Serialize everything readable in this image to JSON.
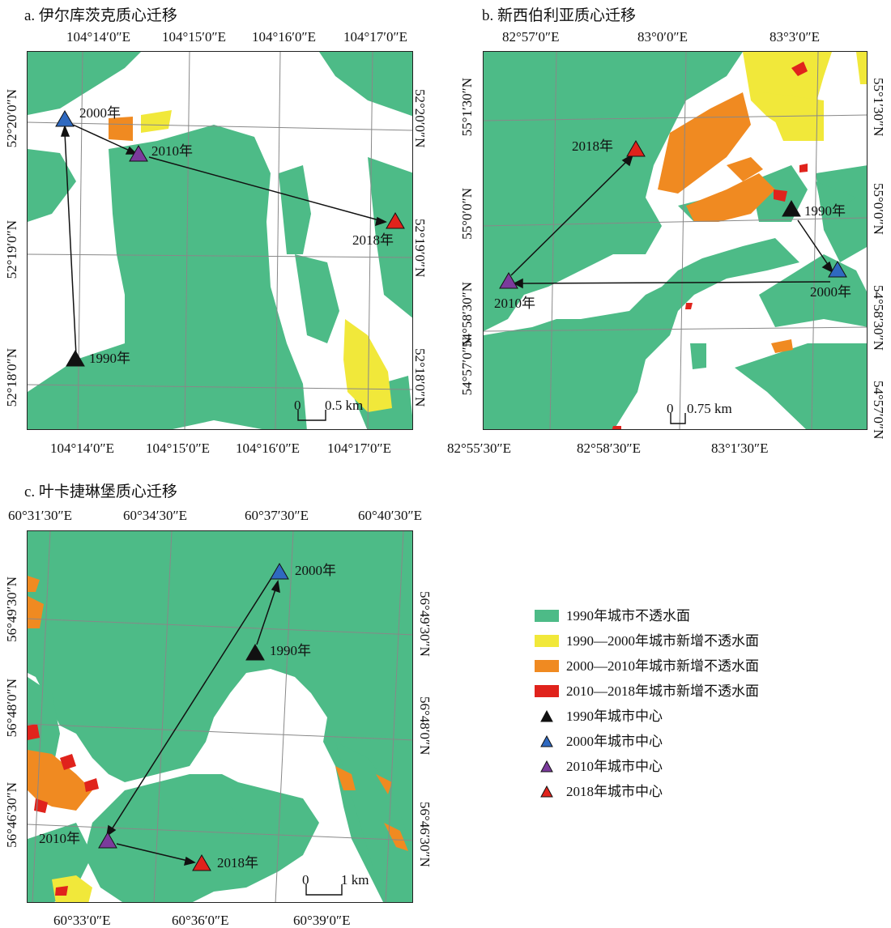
{
  "colors": {
    "impervious_1990": "#4dbb87",
    "new_1990_2000": "#f1e83a",
    "new_2000_2010": "#f08a21",
    "new_2010_2018": "#e0231c",
    "center_1990": "#111111",
    "center_2000": "#2f69c0",
    "center_2010": "#7b3b9c",
    "center_2018": "#e0231c",
    "grid": "#888888"
  },
  "panels": {
    "a": {
      "title": "a. 伊尔库茨克质心迁移",
      "top_ticks": [
        "104°14′0″E",
        "104°15′0″E",
        "104°16′0″E",
        "104°17′0″E"
      ],
      "bottom_ticks": [
        "104°14′0″E",
        "104°15′0″E",
        "104°16′0″E",
        "104°17′0″E"
      ],
      "left_ticks": [
        "52°20′0″N",
        "52°19′0″N",
        "52°18′0″N"
      ],
      "right_ticks": [
        "52°20′0″N",
        "52°19′0″N",
        "52°18′0″N"
      ],
      "scale": {
        "zero": "0",
        "label": "0.5 km"
      },
      "centers": [
        {
          "year": "1990年",
          "symbol": "black"
        },
        {
          "year": "2000年",
          "symbol": "blue"
        },
        {
          "year": "2010年",
          "symbol": "purple"
        },
        {
          "year": "2018年",
          "symbol": "red"
        }
      ]
    },
    "b": {
      "title": "b. 新西伯利亚质心迁移",
      "top_ticks": [
        "82°57′0″E",
        "83°0′0″E",
        "83°3′0″E"
      ],
      "bottom_ticks": [
        "82°55′30″E",
        "82°58′30″E",
        "83°1′30″E"
      ],
      "left_ticks": [
        "55°1′30″N",
        "55°0′0″N",
        "54°58′30″N",
        "54°57′0″N"
      ],
      "right_ticks": [
        "55°1′30″N",
        "55°0′0″N",
        "54°58′30″N",
        "54°57′0″N"
      ],
      "scale": {
        "zero": "0",
        "label": "0.75 km"
      },
      "centers": [
        {
          "year": "1990年",
          "symbol": "black"
        },
        {
          "year": "2000年",
          "symbol": "blue"
        },
        {
          "year": "2010年",
          "symbol": "purple"
        },
        {
          "year": "2018年",
          "symbol": "red"
        }
      ]
    },
    "c": {
      "title": "c. 叶卡捷琳堡质心迁移",
      "top_ticks": [
        "60°31′30″E",
        "60°34′30″E",
        "60°37′30″E",
        "60°40′30″E"
      ],
      "bottom_ticks": [
        "60°33′0″E",
        "60°36′0″E",
        "60°39′0″E"
      ],
      "left_ticks": [
        "56°49′30″N",
        "56°48′0″N",
        "56°46′30″N"
      ],
      "right_ticks": [
        "56°49′30″N",
        "56°48′0″N",
        "56°46′30″N"
      ],
      "scale": {
        "zero": "0",
        "label": "1 km"
      },
      "centers": [
        {
          "year": "1990年",
          "symbol": "black"
        },
        {
          "year": "2000年",
          "symbol": "blue"
        },
        {
          "year": "2010年",
          "symbol": "purple"
        },
        {
          "year": "2018年",
          "symbol": "red"
        }
      ]
    }
  },
  "legend": [
    {
      "label": "1990年城市不透水面",
      "kind": "fill",
      "color": "#4dbb87"
    },
    {
      "label": "1990—2000年城市新增不透水面",
      "kind": "fill",
      "color": "#f1e83a"
    },
    {
      "label": "2000—2010年城市新增不透水面",
      "kind": "fill",
      "color": "#f08a21"
    },
    {
      "label": "2010—2018年城市新增不透水面",
      "kind": "fill",
      "color": "#e0231c"
    },
    {
      "label": "1990年城市中心",
      "kind": "triangle",
      "color": "#111111"
    },
    {
      "label": "2000年城市中心",
      "kind": "triangle",
      "color": "#2f69c0"
    },
    {
      "label": "2010年城市中心",
      "kind": "triangle",
      "color": "#7b3b9c"
    },
    {
      "label": "2018年城市中心",
      "kind": "triangle",
      "color": "#e0231c"
    }
  ]
}
